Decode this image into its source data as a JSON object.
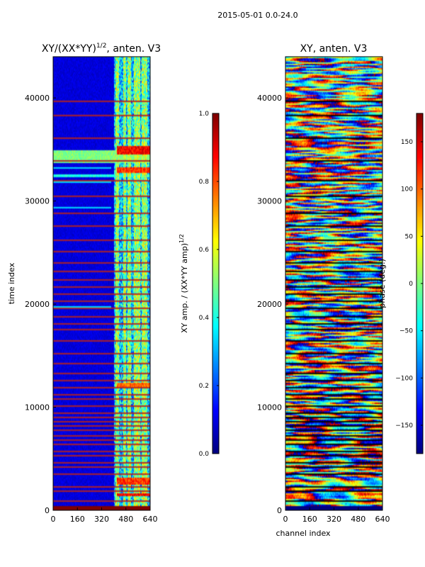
{
  "suptitle": "2015-05-01 0.0-24.0",
  "colors": {
    "jet_dark_blue": "#00007f",
    "jet_blue": "#0000ff",
    "jet_cyan": "#00ffff",
    "jet_yellow": "#ffff00",
    "jet_red": "#ff0000",
    "jet_dark_red": "#7f0000",
    "line_red": "#b22222",
    "line_black": "#000000"
  },
  "chart_data": [
    {
      "type": "heatmap",
      "title": "XY/(XX*YY)^{1/2}, anten. V3",
      "title_main": "XY/(XX*YY)",
      "title_sup": "1/2",
      "title_tail": ", anten. V3",
      "xlabel": "",
      "ylabel": "time index",
      "xlim": [
        0,
        640
      ],
      "ylim": [
        0,
        44000
      ],
      "x_ticks": [
        0,
        160,
        320,
        480,
        640
      ],
      "y_ticks": [
        0,
        10000,
        20000,
        30000,
        40000
      ],
      "x_tick_labels": [
        "0",
        "160",
        "320",
        "480",
        "640"
      ],
      "y_tick_labels": [
        "0",
        "10000",
        "20000",
        "30000",
        "40000"
      ],
      "colormap": "jet",
      "colorbar": {
        "label": "XY amp. / (XX*YY amp)^{1/2}",
        "label_main": "XY amp. / (XX*YY amp)",
        "label_sup": "1/2",
        "range": [
          0.0,
          1.0
        ],
        "ticks": [
          0.0,
          0.2,
          0.4,
          0.6,
          0.8,
          1.0
        ],
        "tick_labels": [
          "0.0",
          "0.2",
          "0.4",
          "0.6",
          "0.8",
          "1.0"
        ]
      },
      "features": {
        "background_value": 0.08,
        "bright_channel_range": [
          400,
          640
        ],
        "bright_vertical_channels": [
          420,
          470,
          500,
          540,
          560,
          590,
          610
        ],
        "saturated_rows": [
          {
            "from": 0,
            "to": 500,
            "value": 1.0
          },
          {
            "from": 1400,
            "to": 1700,
            "value": 0.95
          },
          {
            "from": 2600,
            "to": 3200,
            "value": 0.9
          },
          {
            "from": 12000,
            "to": 12400,
            "value": 0.85
          },
          {
            "from": 32800,
            "to": 33400,
            "value": 0.9
          },
          {
            "from": 34600,
            "to": 35400,
            "value": 0.95
          }
        ],
        "bright_bands": [
          {
            "from": 33800,
            "to": 35000,
            "value": 0.45
          },
          {
            "from": 32400,
            "to": 32600,
            "value": 0.35
          }
        ],
        "flag_rows": [
          1000,
          1900,
          2300,
          3600,
          4200,
          4700,
          5300,
          5800,
          6400,
          6900,
          7300,
          7800,
          8300,
          8700,
          9100,
          9500,
          10200,
          10800,
          11300,
          11900,
          12600,
          13400,
          14300,
          15300,
          16500,
          17600,
          18200,
          18900,
          19600,
          20300,
          21000,
          21700,
          22400,
          23200,
          24000,
          25100,
          26300,
          27600,
          28900,
          30500,
          32100,
          34000,
          36200,
          38300,
          39700
        ]
      }
    },
    {
      "type": "heatmap",
      "title": "XY, anten. V3",
      "xlabel": "channel index",
      "ylabel": "",
      "xlim": [
        0,
        640
      ],
      "ylim": [
        0,
        44000
      ],
      "x_ticks": [
        0,
        160,
        320,
        480,
        640
      ],
      "y_ticks": [
        0,
        10000,
        20000,
        30000,
        40000
      ],
      "x_tick_labels": [
        "0",
        "160",
        "320",
        "480",
        "640"
      ],
      "y_tick_labels": [
        "0",
        "10000",
        "20000",
        "30000",
        "40000"
      ],
      "colormap": "jet",
      "colorbar": {
        "label": "phase (deg.)",
        "range": [
          -180,
          180
        ],
        "ticks": [
          -150,
          -100,
          -50,
          0,
          50,
          100,
          150
        ],
        "tick_labels": [
          "−150",
          "−100",
          "−50",
          "0",
          "50",
          "100",
          "150"
        ]
      },
      "features": {
        "bottom_band": {
          "from": 0,
          "to": 500,
          "value": -180
        },
        "flag_rows": [
          1000,
          1900,
          2300,
          3600,
          4200,
          4700,
          5300,
          5800,
          6400,
          6900,
          7300,
          7800,
          8300,
          8700,
          9100,
          9500,
          10200,
          10800,
          11300,
          11900,
          12600,
          13400,
          14300,
          15300,
          16500,
          17600,
          18200,
          18900,
          19600,
          20300,
          21000,
          21700,
          22400,
          23200,
          24000,
          25100,
          26300,
          27600,
          28900,
          30500,
          32100,
          34000,
          36200,
          38300,
          39700
        ]
      }
    }
  ]
}
